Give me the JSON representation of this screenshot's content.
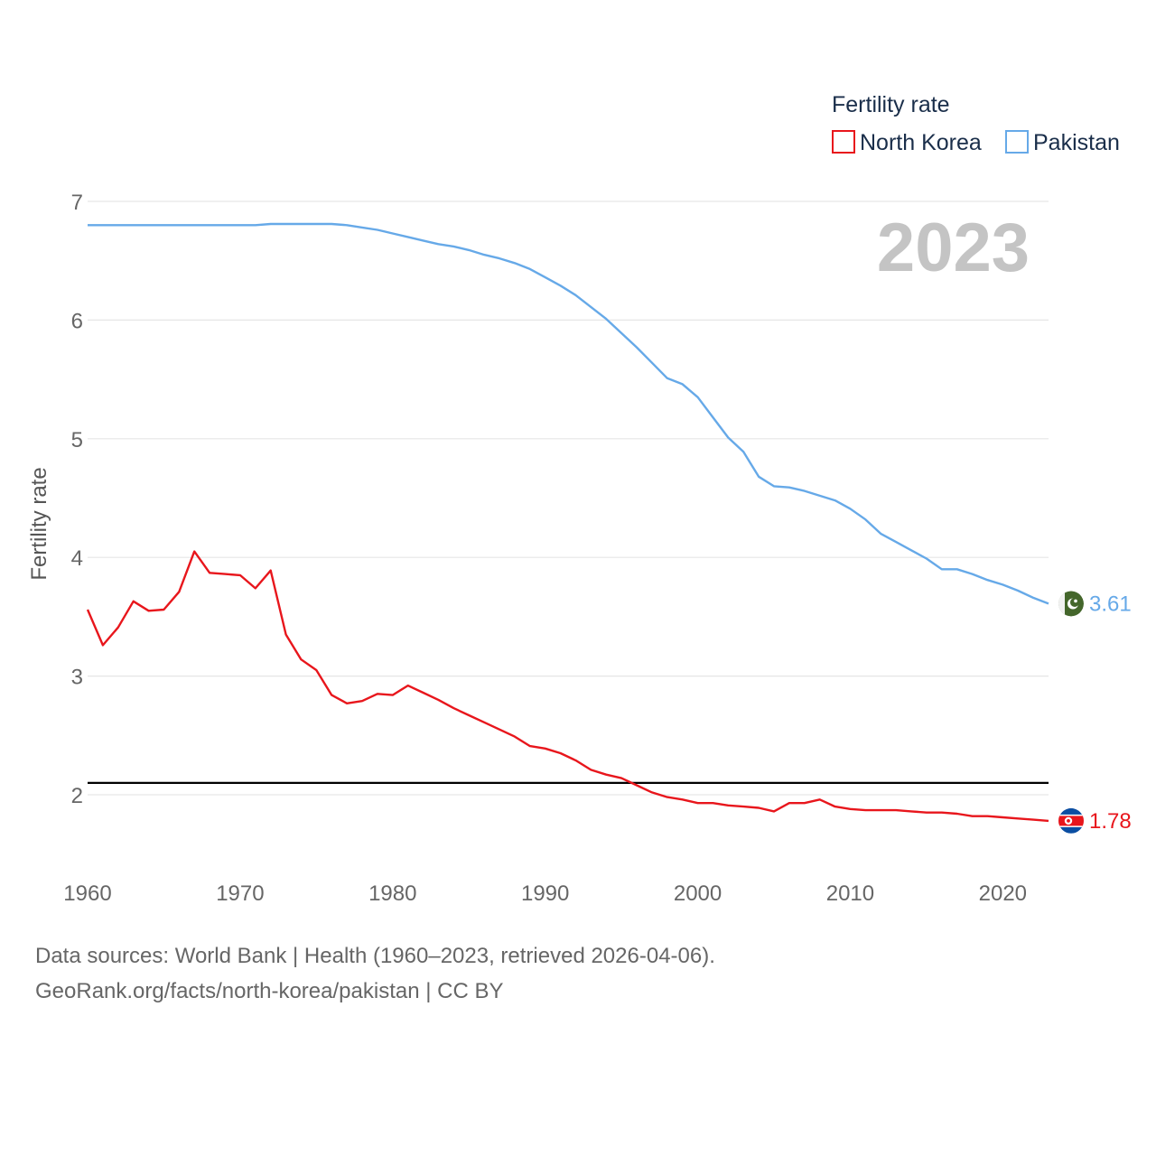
{
  "chart_data": {
    "type": "line",
    "legend_title": "Fertility rate",
    "ylabel": "Fertility rate",
    "year_label": "2023",
    "x_ticks": [
      1960,
      1970,
      1980,
      1990,
      2000,
      2010,
      2020
    ],
    "y_ticks": [
      2,
      3,
      4,
      5,
      6,
      7
    ],
    "xlim": [
      1960,
      2023
    ],
    "ylim": [
      1.5,
      7
    ],
    "reference_line": 2.1,
    "series": [
      {
        "name": "North Korea",
        "color": "#e8161c",
        "end_label": "1.78",
        "icon": "north-korea-flag-icon",
        "x": [
          1960,
          1961,
          1962,
          1963,
          1964,
          1965,
          1966,
          1967,
          1968,
          1969,
          1970,
          1971,
          1972,
          1973,
          1974,
          1975,
          1976,
          1977,
          1978,
          1979,
          1980,
          1981,
          1982,
          1983,
          1984,
          1985,
          1986,
          1987,
          1988,
          1989,
          1990,
          1991,
          1992,
          1993,
          1994,
          1995,
          1996,
          1997,
          1998,
          1999,
          2000,
          2001,
          2002,
          2003,
          2004,
          2005,
          2006,
          2007,
          2008,
          2009,
          2010,
          2011,
          2012,
          2013,
          2014,
          2015,
          2016,
          2017,
          2018,
          2019,
          2020,
          2021,
          2022,
          2023
        ],
        "values": [
          3.56,
          3.26,
          3.41,
          3.63,
          3.55,
          3.56,
          3.71,
          4.05,
          3.87,
          3.86,
          3.85,
          3.74,
          3.89,
          3.35,
          3.14,
          3.05,
          2.84,
          2.77,
          2.79,
          2.85,
          2.84,
          2.92,
          2.86,
          2.8,
          2.73,
          2.67,
          2.61,
          2.55,
          2.49,
          2.41,
          2.39,
          2.35,
          2.29,
          2.21,
          2.17,
          2.14,
          2.08,
          2.02,
          1.98,
          1.96,
          1.93,
          1.93,
          1.91,
          1.9,
          1.89,
          1.86,
          1.93,
          1.93,
          1.96,
          1.9,
          1.88,
          1.87,
          1.87,
          1.87,
          1.86,
          1.85,
          1.85,
          1.84,
          1.82,
          1.82,
          1.81,
          1.8,
          1.79,
          1.78
        ]
      },
      {
        "name": "Pakistan",
        "color": "#66a9e8",
        "end_label": "3.61",
        "icon": "pakistan-flag-icon",
        "x": [
          1960,
          1961,
          1962,
          1963,
          1964,
          1965,
          1966,
          1967,
          1968,
          1969,
          1970,
          1971,
          1972,
          1973,
          1974,
          1975,
          1976,
          1977,
          1978,
          1979,
          1980,
          1981,
          1982,
          1983,
          1984,
          1985,
          1986,
          1987,
          1988,
          1989,
          1990,
          1991,
          1992,
          1993,
          1994,
          1995,
          1996,
          1997,
          1998,
          1999,
          2000,
          2001,
          2002,
          2003,
          2004,
          2005,
          2006,
          2007,
          2008,
          2009,
          2010,
          2011,
          2012,
          2013,
          2014,
          2015,
          2016,
          2017,
          2018,
          2019,
          2020,
          2021,
          2022,
          2023
        ],
        "values": [
          6.8,
          6.8,
          6.8,
          6.8,
          6.8,
          6.8,
          6.8,
          6.8,
          6.8,
          6.8,
          6.8,
          6.8,
          6.81,
          6.81,
          6.81,
          6.81,
          6.81,
          6.8,
          6.78,
          6.76,
          6.73,
          6.7,
          6.67,
          6.64,
          6.62,
          6.59,
          6.55,
          6.52,
          6.48,
          6.43,
          6.36,
          6.29,
          6.21,
          6.11,
          6.01,
          5.89,
          5.77,
          5.64,
          5.51,
          5.46,
          5.35,
          5.18,
          5.01,
          4.89,
          4.68,
          4.6,
          4.59,
          4.56,
          4.52,
          4.48,
          4.41,
          4.32,
          4.2,
          4.13,
          4.06,
          3.99,
          3.9,
          3.9,
          3.86,
          3.81,
          3.77,
          3.72,
          3.66,
          3.61
        ]
      }
    ]
  },
  "footer": {
    "source_line": "Data sources: World Bank | Health (1960–2023, retrieved 2026-04-06).",
    "credit_line": "GeoRank.org/facts/north-korea/pakistan | CC BY"
  }
}
